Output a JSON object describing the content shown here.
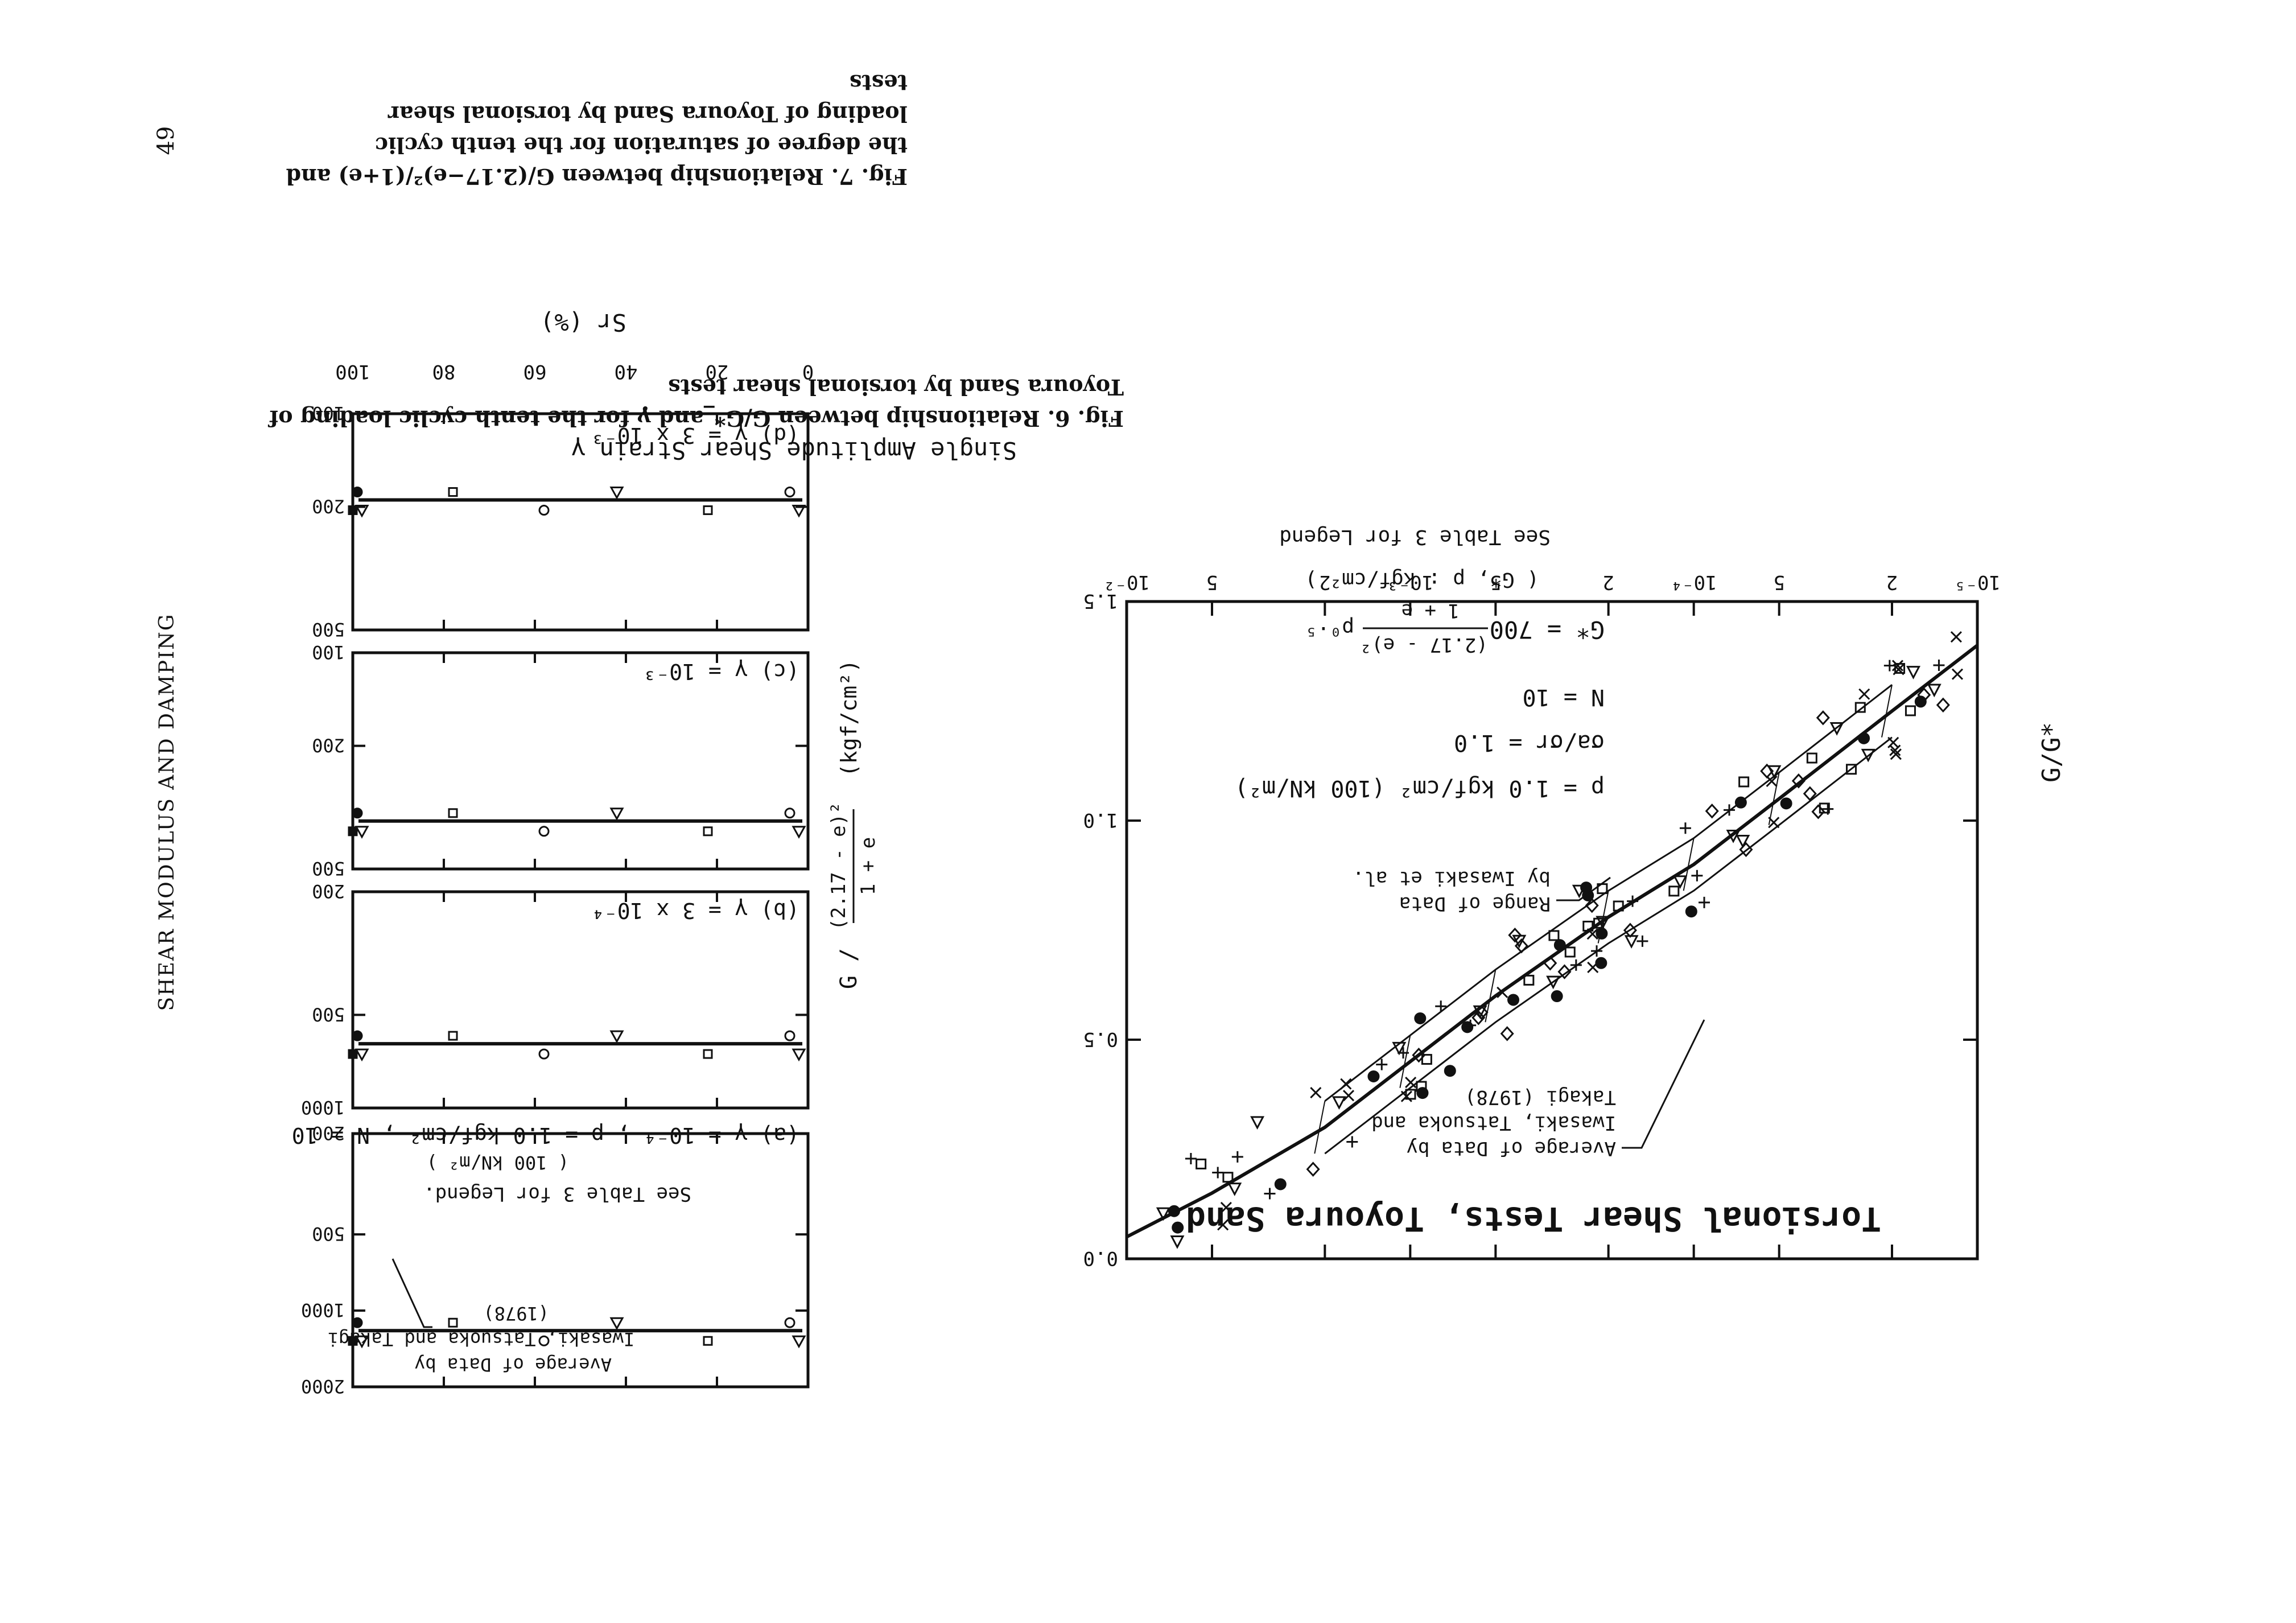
{
  "page": {
    "running_header": "SHEAR MODULUS AND DAMPING",
    "page_number": "49"
  },
  "fig6": {
    "caption_line1": "Fig. 6.  Relationship between G/G*_and γ for the tenth cyclic loading of",
    "caption_line2": "Toyoura Sand by torsional shear tests",
    "title": "Torsional Shear Tests, Toyoura Sand",
    "xlabel": "Single Amplitude Shear Strain  γ",
    "ylabel": "G/G*",
    "formula_lhs": "G* = 700",
    "formula_num": "(2.17 - e)²",
    "formula_den": "1 + e",
    "formula_p": "p⁰·⁵",
    "units": "( G*, p : kgf/cm² )",
    "legend_note": "See Table 3 for Legend",
    "cond_p": "p = 1.0 kgf/cm² (100 kN/m²)",
    "cond_ratio": "σa/σr = 1.0",
    "cond_n": "N = 10",
    "annot_average_1": "Average of Data by",
    "annot_average_2": "Iwasaki, Tatsuoka and",
    "annot_average_3": "Takagi (1978)",
    "annot_range_1": "Range of Data",
    "annot_range_2": "by Iwasaki et al.",
    "ytick_labels": [
      "0.0",
      "0.5",
      "1.0",
      "1.5"
    ],
    "xtick_labels": [
      "10⁻⁵",
      "2",
      "5",
      "10⁻⁴",
      "2",
      "5",
      "10⁻³",
      "2",
      "5",
      "10⁻²"
    ]
  },
  "fig7": {
    "caption_line1": "Fig. 7.  Relationship between G/(2.17−e)²/(1+e) and",
    "caption_line2": "the degree of saturation for the tenth cyclic",
    "caption_line3": "loading of Toyoura Sand by torsional shear",
    "caption_line4": "tests",
    "xlabel": "Sr (%)",
    "xtick_labels": [
      "0",
      "20",
      "40",
      "60",
      "80",
      "100"
    ],
    "ylabel_g": "G /",
    "ylabel_num": "(2.17 - e)²",
    "ylabel_den": "1 + e",
    "ylabel_units": "(kgf/cm²)",
    "panel_a_label": "(a)  γ = 10⁻⁴ ,      p = 1.0 kgf/cm² ,      N = 10",
    "panel_a_sub": "( 100 kN/m² )",
    "panel_a_legend": "See Table 3 for Legend.",
    "panel_a_avg_1": "Average of Data by",
    "panel_a_avg_2": "Iwasaki, Tatsuoka and Takagi",
    "panel_a_avg_3": "(1978)",
    "panel_a_yticks": [
      "200",
      "500",
      "1000",
      "2000"
    ],
    "panel_b_label": "(b)  γ = 3 x 10⁻⁴",
    "panel_b_yticks": [
      "200",
      "500",
      "1000"
    ],
    "panel_c_label": "(c)  γ = 10⁻³",
    "panel_c_yticks": [
      "100",
      "200",
      "500"
    ],
    "panel_d_label": "(d)  γ = 3 x 10⁻³",
    "panel_d_yticks": [
      "100",
      "200",
      "500"
    ]
  },
  "chart_data": [
    {
      "type": "scatter",
      "title": "Torsional Shear Tests, Toyoura Sand",
      "xlabel": "Single Amplitude Shear Strain  γ",
      "ylabel": "G/G*",
      "x_scale": "log",
      "xlim": [
        1e-05,
        0.01
      ],
      "ylim": [
        0.0,
        1.5
      ],
      "grid": false,
      "average_curve": {
        "x": [
          1e-05,
          2e-05,
          5e-05,
          0.0001,
          0.0002,
          0.0005,
          0.001,
          0.002,
          0.005,
          0.01
        ],
        "y": [
          1.4,
          1.25,
          1.05,
          0.9,
          0.78,
          0.6,
          0.45,
          0.3,
          0.15,
          0.05
        ]
      }
    },
    {
      "type": "scatter",
      "xlabel": "Sr (%)",
      "xlim": [
        0,
        100
      ],
      "y_scale": "log",
      "panels": [
        {
          "label": "(a)  γ = 10⁻⁴",
          "ylim": [
            200,
            2000
          ],
          "average": 1200
        },
        {
          "label": "(b)  γ = 3 x 10⁻⁴",
          "ylim": [
            200,
            1000
          ],
          "average": 620
        },
        {
          "label": "(c)  γ = 10⁻³",
          "ylim": [
            100,
            500
          ],
          "average": 350
        },
        {
          "label": "(d)  γ = 3 x 10⁻³",
          "ylim": [
            100,
            500
          ],
          "average": 190
        }
      ]
    }
  ]
}
